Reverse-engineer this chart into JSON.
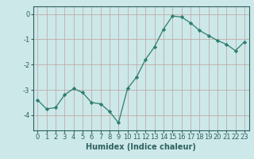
{
  "x": [
    0,
    1,
    2,
    3,
    4,
    5,
    6,
    7,
    8,
    9,
    10,
    11,
    12,
    13,
    14,
    15,
    16,
    17,
    18,
    19,
    20,
    21,
    22,
    23
  ],
  "y": [
    -3.4,
    -3.75,
    -3.7,
    -3.2,
    -2.95,
    -3.1,
    -3.5,
    -3.55,
    -3.85,
    -4.3,
    -2.95,
    -2.5,
    -1.8,
    -1.3,
    -0.6,
    -0.08,
    -0.12,
    -0.35,
    -0.65,
    -0.85,
    -1.05,
    -1.2,
    -1.45,
    -1.1
  ],
  "xlabel": "Humidex (Indice chaleur)",
  "ylim": [
    -4.6,
    0.3
  ],
  "xlim": [
    -0.5,
    23.5
  ],
  "yticks": [
    0,
    -1,
    -2,
    -3,
    -4
  ],
  "xticks": [
    0,
    1,
    2,
    3,
    4,
    5,
    6,
    7,
    8,
    9,
    10,
    11,
    12,
    13,
    14,
    15,
    16,
    17,
    18,
    19,
    20,
    21,
    22,
    23
  ],
  "line_color": "#2e7d6e",
  "marker": "D",
  "marker_size": 2.2,
  "bg_color": "#cce8e8",
  "grid_color": "#c0a0a0",
  "axis_color": "#2e6060",
  "xlabel_fontsize": 7,
  "tick_fontsize": 6,
  "title": ""
}
